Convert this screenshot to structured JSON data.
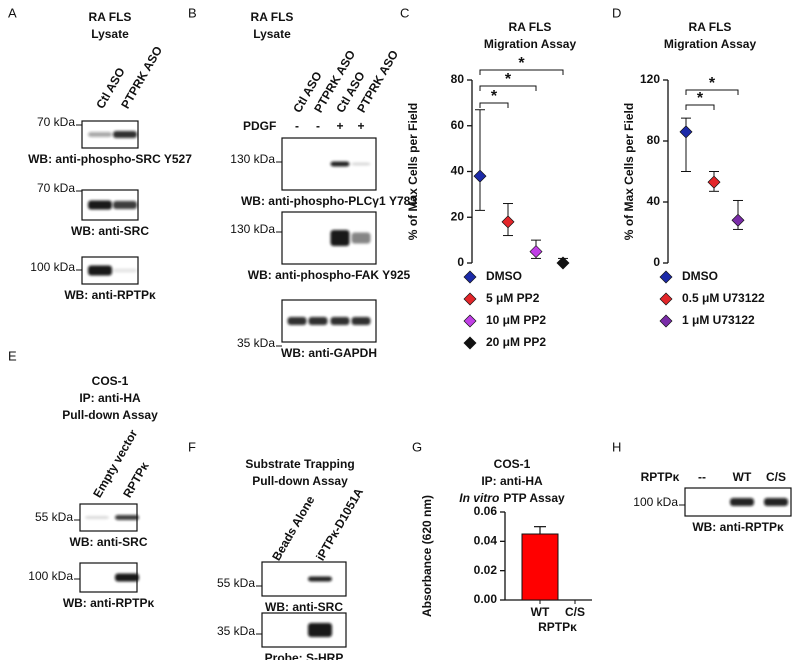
{
  "panels": [
    {
      "label": "A",
      "title": [
        "RA FLS",
        "Lysate"
      ],
      "lanes": [
        "Ctl ASO",
        "PTPRK ASO"
      ],
      "blots": [
        {
          "marker": "70 kDa",
          "caption": "WB: anti-phospho-SRC Y527"
        },
        {
          "marker": "70 kDa",
          "caption": "WB: anti-SRC"
        },
        {
          "marker": "100 kDa",
          "caption": "WB: anti-RPTPκ"
        }
      ]
    },
    {
      "label": "B",
      "title": [
        "RA FLS",
        "Lysate"
      ],
      "lanes": [
        "Ctl ASO",
        "PTPRK ASO",
        "Ctl ASO",
        "PTPRK ASO"
      ],
      "treatment": {
        "name": "PDGF",
        "signs": [
          "-",
          "-",
          "+",
          "+"
        ]
      },
      "blots": [
        {
          "marker": "130 kDa",
          "caption": "WB: anti-phospho-PLCγ1 Y783"
        },
        {
          "marker": "130 kDa",
          "caption": "WB: anti-phospho-FAK Y925"
        },
        {
          "marker": "35 kDa",
          "caption": "WB: anti-GAPDH"
        }
      ]
    },
    {
      "label": "E",
      "title": [
        "COS-1",
        "IP: anti-HA",
        "Pull-down Assay"
      ],
      "lanes": [
        "Empty vector",
        "RPTPκ"
      ],
      "blots": [
        {
          "marker": "55 kDa",
          "caption": "WB: anti-SRC"
        },
        {
          "marker": "100 kDa",
          "caption": "WB: anti-RPTPκ"
        }
      ]
    },
    {
      "label": "F",
      "title": [
        "Substrate Trapping",
        "Pull-down Assay"
      ],
      "lanes": [
        "Beads Alone",
        "iPTPκ-D1051A"
      ],
      "blots": [
        {
          "marker": "55 kDa",
          "caption": "WB: anti-SRC"
        },
        {
          "marker": "35 kDa",
          "caption": "Probe: S-HRP"
        }
      ]
    },
    {
      "label": "H",
      "row_label": "RPTPκ",
      "lanes": [
        "--",
        "WT",
        "C/S"
      ],
      "blots": [
        {
          "marker": "100 kDa",
          "caption": "WB: anti-RPTPκ"
        }
      ]
    }
  ],
  "chart_data": [
    {
      "panel_label": "C",
      "type": "dot",
      "title": [
        "RA FLS",
        "Migration Assay"
      ],
      "y_label": "% of Max Cells per Field",
      "categories": [
        "DMSO",
        "5 μM PP2",
        "10 μM PP2",
        "20 μM PP2"
      ],
      "values": [
        38,
        18,
        5,
        0
      ],
      "error_low": [
        23,
        12,
        2,
        0
      ],
      "error_high": [
        67,
        26,
        10,
        2
      ],
      "colors": [
        "#1c2aa8",
        "#e3262a",
        "#c13fe6",
        "#111111"
      ],
      "ylim": [
        0,
        80
      ],
      "yticks": [
        0,
        20,
        40,
        60,
        80
      ],
      "legend": "bottom",
      "annotations": [
        "*",
        "*",
        "*"
      ]
    },
    {
      "panel_label": "D",
      "type": "dot",
      "title": [
        "RA FLS",
        "Migration Assay"
      ],
      "y_label": "% of Max Cells per Field",
      "categories": [
        "DMSO",
        "0.5 μM U73122",
        "1 μM U73122"
      ],
      "values": [
        86,
        53,
        28
      ],
      "error_low": [
        60,
        47,
        22
      ],
      "error_high": [
        95,
        60,
        41
      ],
      "colors": [
        "#1c2aa8",
        "#e3262a",
        "#7a2ca8"
      ],
      "ylim": [
        0,
        120
      ],
      "yticks": [
        0,
        40,
        80,
        120
      ],
      "legend": "bottom",
      "annotations": [
        "*",
        "*"
      ]
    },
    {
      "panel_label": "G",
      "type": "bar",
      "title": [
        "COS-1",
        "IP: anti-HA",
        {
          "italic": "In vitro",
          "text": "PTP Assay"
        }
      ],
      "y_label": "Absorbance (620 nm)",
      "x_label": "RPTPκ",
      "categories": [
        "WT",
        "C/S"
      ],
      "values": [
        0.045,
        0
      ],
      "errors": [
        0.005,
        0
      ],
      "color": "#ff0000",
      "ylim": [
        0,
        0.06
      ],
      "yticks": [
        {
          "value": 0,
          "label": "0.00"
        },
        {
          "value": 0.02,
          "label": "0.02"
        },
        {
          "value": 0.04,
          "label": "0.04"
        },
        {
          "value": 0.06,
          "label": "0.06"
        }
      ]
    }
  ]
}
